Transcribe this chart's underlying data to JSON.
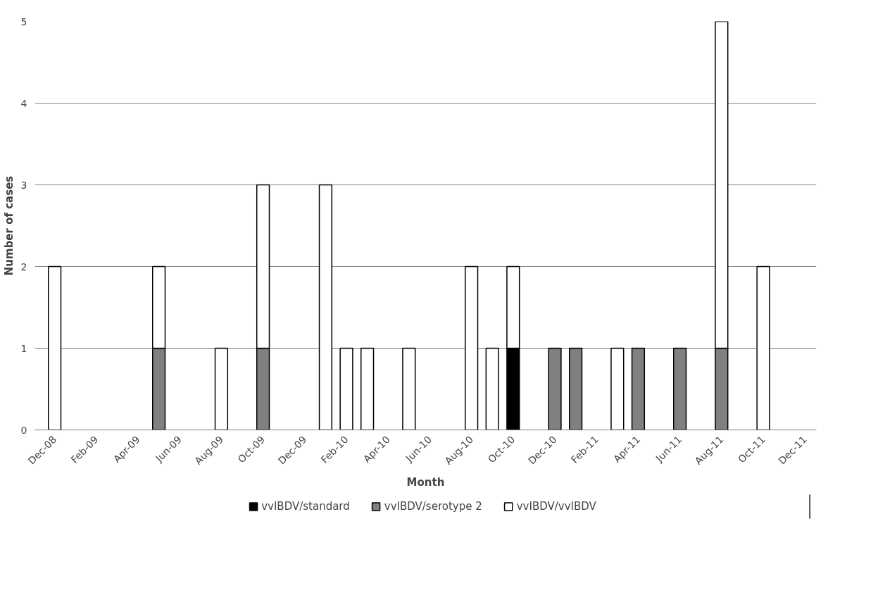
{
  "chart_data": {
    "type": "bar",
    "stacked": true,
    "xlabel": "Month",
    "ylabel": "Number of cases",
    "categories": [
      "Dec-08",
      null,
      "Feb-09",
      null,
      "Apr-09",
      null,
      "Jun-09",
      null,
      "Aug-09",
      null,
      "Oct-09",
      null,
      "Dec-09",
      null,
      "Feb-10",
      null,
      "Apr-10",
      null,
      "Jun-10",
      null,
      "Aug-10",
      null,
      "Oct-10",
      null,
      "Dec-10",
      null,
      "Feb-11",
      null,
      "Apr-11",
      null,
      "Jun-11",
      null,
      "Aug-11",
      null,
      "Oct-11",
      null,
      "Dec-11"
    ],
    "series": [
      {
        "name": "vvIBDV/standard",
        "color": "#000000",
        "values": [
          0,
          0,
          0,
          0,
          0,
          0,
          0,
          0,
          0,
          0,
          0,
          0,
          0,
          0,
          0,
          0,
          0,
          0,
          0,
          0,
          0,
          0,
          1,
          0,
          0,
          0,
          0,
          0,
          0,
          0,
          0,
          0,
          0,
          0,
          0,
          0,
          0
        ]
      },
      {
        "name": "vvIBDV/serotype 2",
        "color": "#808080",
        "values": [
          0,
          0,
          0,
          0,
          0,
          1,
          0,
          0,
          0,
          0,
          1,
          0,
          0,
          0,
          0,
          0,
          0,
          0,
          0,
          0,
          0,
          0,
          0,
          0,
          1,
          1,
          0,
          0,
          1,
          0,
          1,
          0,
          1,
          0,
          0,
          0,
          0
        ]
      },
      {
        "name": "vvIBDV/vvIBDV",
        "color": "#ffffff",
        "values": [
          2,
          0,
          0,
          0,
          0,
          1,
          0,
          0,
          1,
          0,
          2,
          0,
          0,
          3,
          1,
          1,
          0,
          1,
          0,
          0,
          2,
          1,
          1,
          0,
          0,
          0,
          0,
          1,
          0,
          0,
          0,
          0,
          4,
          0,
          2,
          0,
          0
        ]
      }
    ],
    "ylim": [
      0,
      5
    ],
    "yticks": [
      0,
      1,
      2,
      3,
      4,
      5
    ],
    "grid": "y",
    "legend": "bottom"
  }
}
